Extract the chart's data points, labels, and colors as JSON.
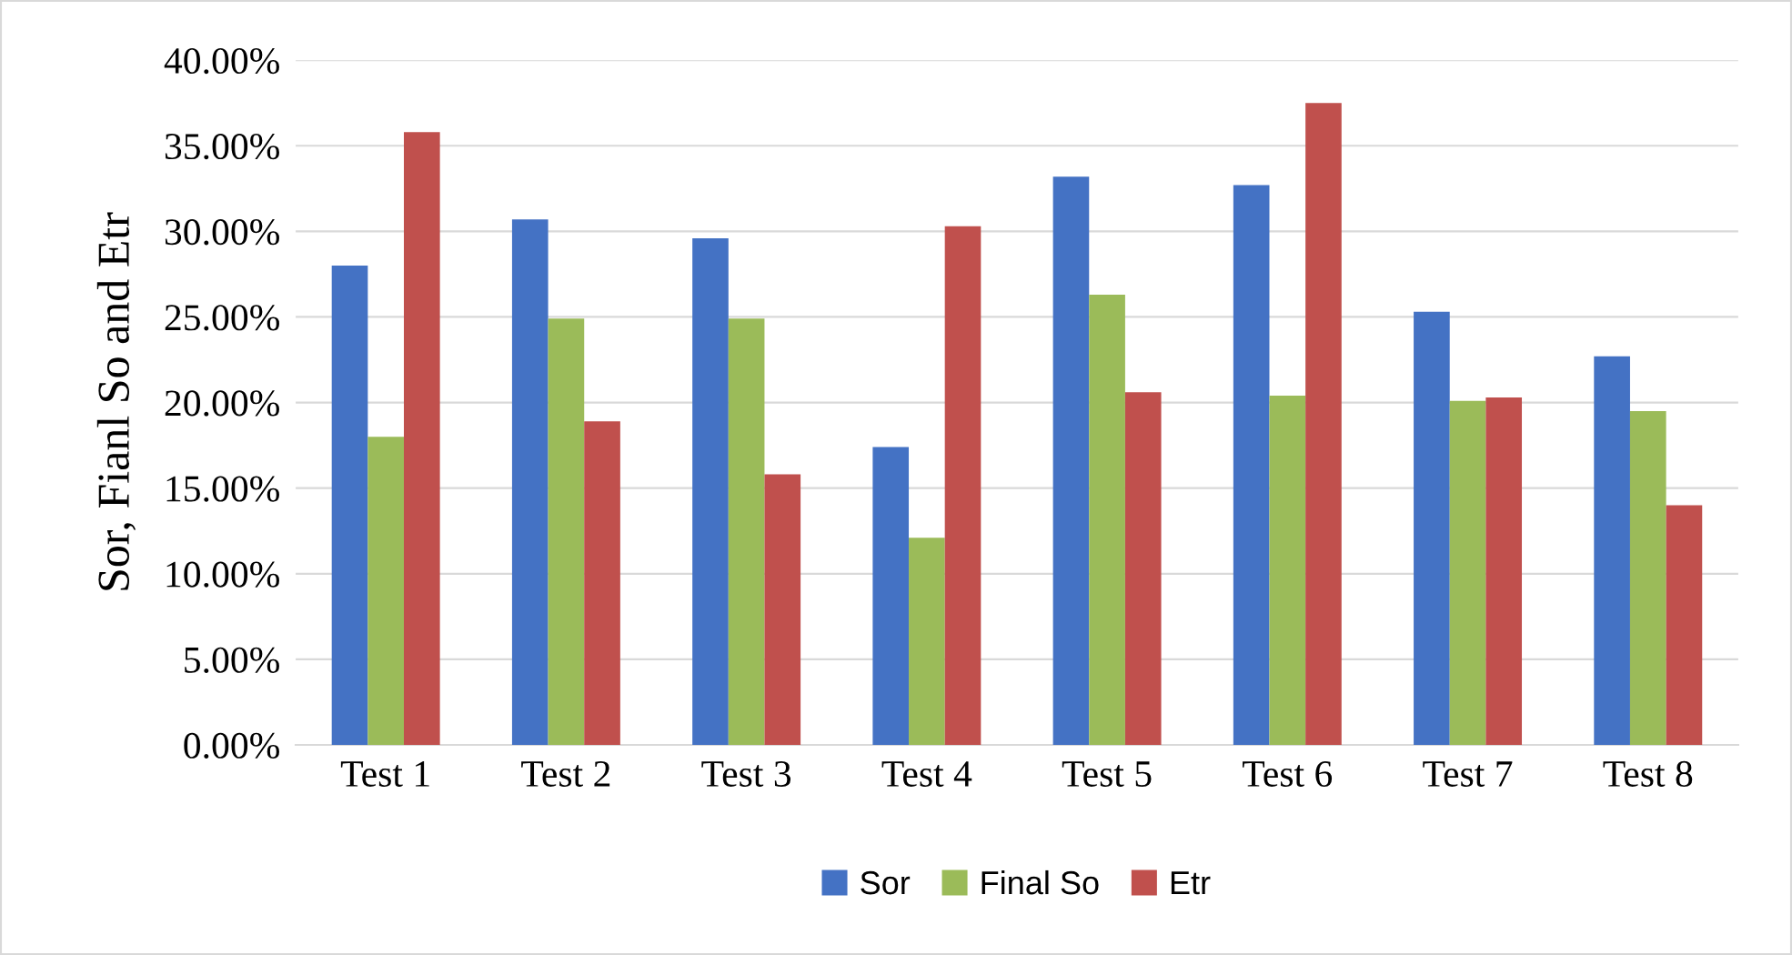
{
  "chart_data": {
    "type": "bar",
    "ylabel": "Sor, Fianl So and Etr",
    "categories": [
      "Test 1",
      "Test 2",
      "Test 3",
      "Test 4",
      "Test 5",
      "Test 6",
      "Test 7",
      "Test 8"
    ],
    "series": [
      {
        "name": "Sor",
        "color": "#4472c4",
        "values": [
          28.0,
          30.7,
          29.6,
          17.4,
          33.2,
          32.7,
          25.3,
          22.7
        ]
      },
      {
        "name": "Final So",
        "color": "#9bbb59",
        "values": [
          18.0,
          24.9,
          24.9,
          12.1,
          26.3,
          20.4,
          20.1,
          19.5
        ]
      },
      {
        "name": "Etr",
        "color": "#c0504d",
        "values": [
          35.8,
          18.9,
          15.8,
          30.3,
          20.6,
          37.5,
          20.3,
          14.0
        ]
      }
    ],
    "ylim": [
      0,
      40
    ],
    "yticks": [
      {
        "value": 0,
        "label": "0.00%"
      },
      {
        "value": 5,
        "label": "5.00%"
      },
      {
        "value": 10,
        "label": "10.00%"
      },
      {
        "value": 15,
        "label": "15.00%"
      },
      {
        "value": 20,
        "label": "20.00%"
      },
      {
        "value": 25,
        "label": "25.00%"
      },
      {
        "value": 30,
        "label": "30.00%"
      },
      {
        "value": 35,
        "label": "35.00%"
      },
      {
        "value": 40,
        "label": "40.00%"
      }
    ],
    "grid": "y",
    "legend": "bottom"
  }
}
